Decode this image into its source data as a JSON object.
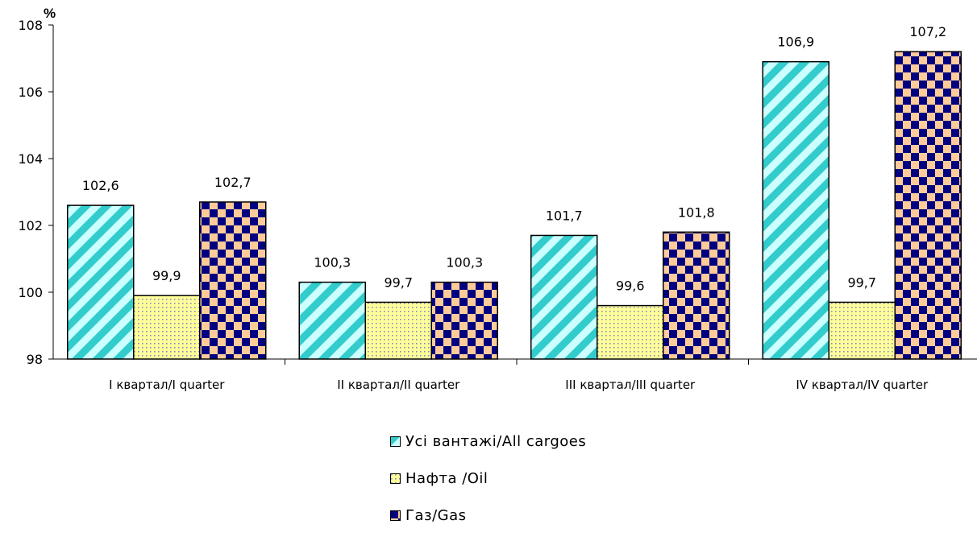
{
  "chart_data": {
    "type": "bar",
    "unit_label": "%",
    "categories": [
      "I квартал/I quarter",
      "II квартал/II quarter",
      "III квартал/III quarter",
      "IV квартал/IV quarter"
    ],
    "series": [
      {
        "name": "Усі вантажі/All cargoes",
        "values": [
          102.6,
          100.3,
          101.7,
          106.9
        ],
        "labels": [
          "102,6",
          "100,3",
          "101,7",
          "106,9"
        ],
        "pattern": "diagonal-stripes",
        "colors": [
          "#33cccc",
          "#ccffff"
        ]
      },
      {
        "name": "Нафта /Oil",
        "values": [
          99.9,
          99.7,
          99.6,
          99.7
        ],
        "labels": [
          "99,9",
          "99,7",
          "99,6",
          "99,7"
        ],
        "pattern": "dots",
        "colors": [
          "#ffff99",
          "#8888cc"
        ]
      },
      {
        "name": "Газ/Gas",
        "values": [
          102.7,
          100.3,
          101.8,
          107.2
        ],
        "labels": [
          "102,7",
          "100,3",
          "101,8",
          "107,2"
        ],
        "pattern": "checkerboard",
        "colors": [
          "#ffcc99",
          "#000080"
        ]
      }
    ],
    "ylim": [
      98,
      108
    ],
    "yticks": [
      98,
      100,
      102,
      104,
      106,
      108
    ],
    "xlabel": "",
    "ylabel": "",
    "grid": false,
    "legend_position": "bottom"
  }
}
